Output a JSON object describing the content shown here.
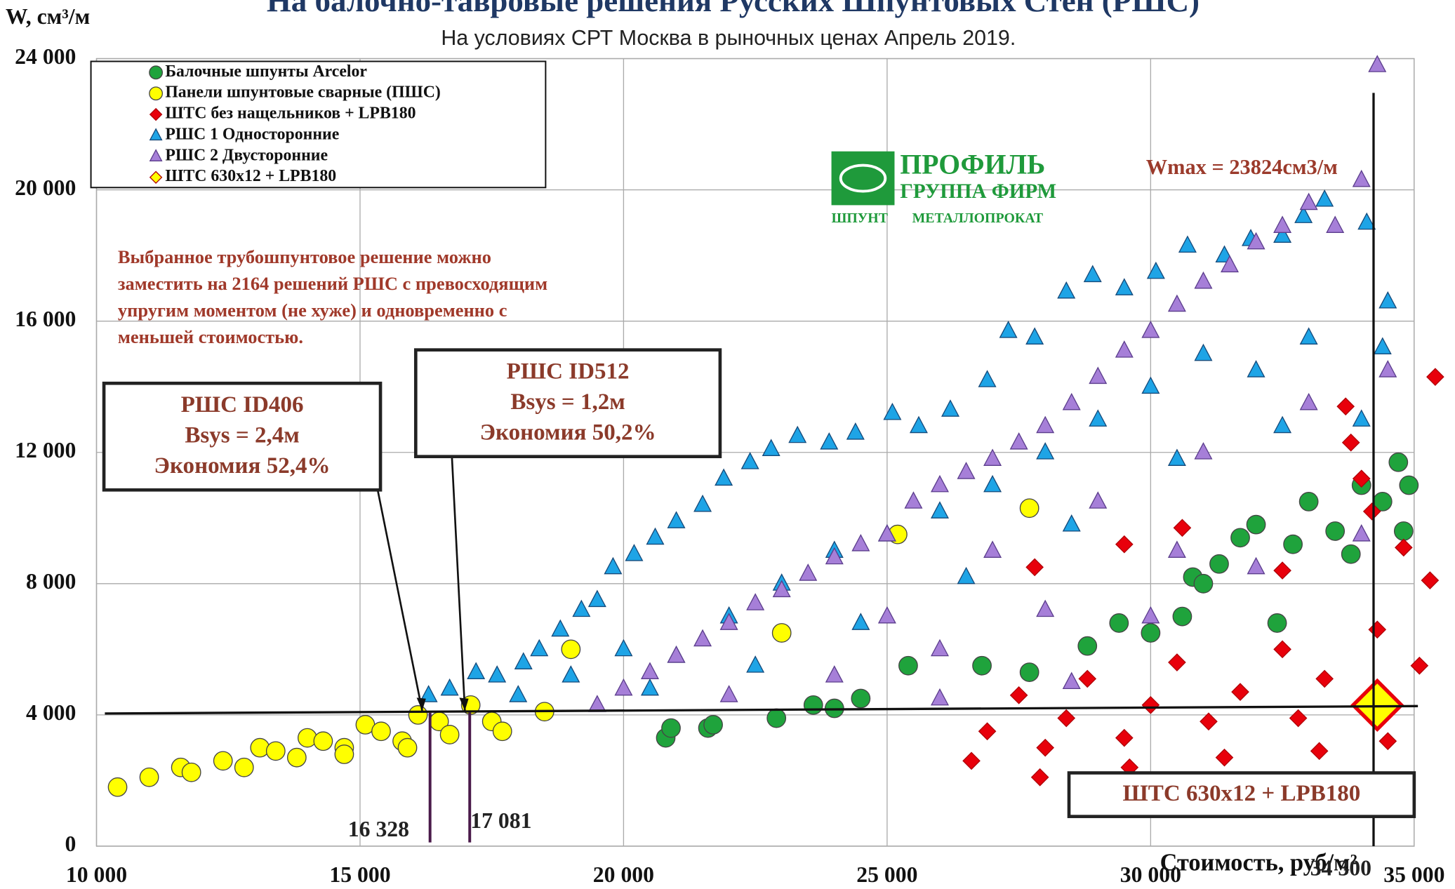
{
  "chart_data": {
    "type": "scatter",
    "title": "На балочно-тавровые решения Русских Шпунтовых Стен (РШС)",
    "subtitle": "На условиях СРТ Москва в рыночных ценах Апрель 2019.",
    "y_label": "W, см³/м",
    "x_label": "Стоимость, руб/м²",
    "xlim": [
      10000,
      35000
    ],
    "xticks": [
      {
        "value": 10000,
        "label": "10 000"
      },
      {
        "value": 15000,
        "label": "15 000"
      },
      {
        "value": 20000,
        "label": "20 000"
      },
      {
        "value": 25000,
        "label": "25 000"
      },
      {
        "value": 30000,
        "label": "30 000"
      },
      {
        "value": 35000,
        "label": "35 000"
      }
    ],
    "ylim": [
      0,
      24000
    ],
    "yticks": [
      0,
      {
        "value": 4000,
        "label": "4 000"
      },
      {
        "value": 8000,
        "label": "8 000"
      },
      {
        "value": 12000,
        "label": "12 000"
      },
      {
        "value": 16000,
        "label": "16 000"
      },
      {
        "value": 20000,
        "label": "20 000"
      },
      {
        "value": 24000,
        "label": "24 000"
      }
    ],
    "grid": true,
    "legend": "upper left",
    "series": [
      {
        "name": "Балочные шпунты Arcelor",
        "color": "#1fa33c",
        "marker": "circle",
        "x": [
          20800,
          20900,
          21600,
          21700,
          22900,
          23600,
          24000,
          24500,
          25400,
          26800,
          27700,
          28800,
          29400,
          30000,
          30600,
          30800,
          31300,
          31700,
          32000,
          32400,
          32700,
          33000,
          33500,
          34000,
          34400,
          34700,
          34900,
          34800,
          33800,
          31000
        ],
        "values": [
          3300,
          3600,
          3600,
          3700,
          3900,
          4300,
          4200,
          4500,
          5500,
          5500,
          5300,
          6100,
          6800,
          6500,
          7000,
          8200,
          8600,
          9400,
          9800,
          6800,
          9200,
          10500,
          9600,
          11000,
          10500,
          11700,
          11000,
          9600,
          8900,
          8000
        ]
      },
      {
        "name": "Панели шпунтовые сварные (ПШС)",
        "color": "#ffff00",
        "marker": "circle",
        "x": [
          10400,
          11000,
          11600,
          11800,
          12400,
          12800,
          13100,
          13400,
          13800,
          14000,
          14300,
          14700,
          14700,
          15100,
          15400,
          15800,
          15900,
          16100,
          16500,
          16700,
          17100,
          17500,
          17700,
          18500,
          19000,
          23000,
          25200,
          27700
        ],
        "values": [
          1800,
          2100,
          2400,
          2250,
          2600,
          2400,
          3000,
          2900,
          2700,
          3300,
          3200,
          3000,
          2800,
          3700,
          3500,
          3200,
          3000,
          4000,
          3800,
          3400,
          4300,
          3800,
          3500,
          4100,
          6000,
          6500,
          9500,
          10300
        ]
      },
      {
        "name": "ШТС без нащельников + LPB180",
        "color": "#e8000b",
        "marker": "diamond",
        "x": [
          26600,
          26900,
          27500,
          27900,
          28000,
          28400,
          28800,
          29500,
          29600,
          30000,
          30500,
          31100,
          31400,
          31700,
          32500,
          32800,
          33200,
          33300,
          33700,
          33800,
          34000,
          34200,
          34300,
          34500,
          34800,
          35100,
          35300,
          35400,
          32500,
          30600,
          29500,
          27800
        ],
        "values": [
          2600,
          3500,
          4600,
          2100,
          3000,
          3900,
          5100,
          3300,
          2400,
          4300,
          5600,
          3800,
          2700,
          4700,
          6000,
          3900,
          2900,
          5100,
          13400,
          12300,
          11200,
          10200,
          6600,
          3200,
          9100,
          5500,
          8100,
          14300,
          8400,
          9700,
          9200,
          8500
        ]
      },
      {
        "name": "РШС 1 Односторонние",
        "color": "#1ea4e6",
        "marker": "triangle",
        "x": [
          16300,
          16700,
          17200,
          17600,
          18100,
          18400,
          18800,
          19200,
          19500,
          19800,
          20200,
          20600,
          21000,
          21500,
          21900,
          22400,
          22800,
          23300,
          23900,
          24400,
          25100,
          25600,
          26200,
          26900,
          27300,
          27800,
          28400,
          28900,
          29500,
          30100,
          30700,
          31400,
          31900,
          32500,
          32900,
          33300,
          34100,
          34500,
          34400,
          18000,
          19000,
          20000,
          21000,
          22000,
          23000,
          24000,
          25000,
          26000,
          27000,
          28000,
          29000,
          30000,
          31000,
          32000,
          33000,
          20500,
          22500,
          24500,
          26500,
          28500,
          30500,
          32500,
          34000
        ],
        "values": [
          4600,
          4800,
          5300,
          5200,
          5600,
          6000,
          6600,
          7200,
          7500,
          8500,
          8900,
          9400,
          9900,
          10400,
          11200,
          11700,
          12100,
          12500,
          12300,
          12600,
          13200,
          12800,
          13300,
          14200,
          15700,
          15500,
          16900,
          17400,
          17000,
          17500,
          18300,
          18000,
          18500,
          18600,
          19200,
          19700,
          19000,
          16600,
          15200,
          4600,
          5200,
          6000,
          5800,
          7000,
          8000,
          9000,
          9500,
          10200,
          11000,
          12000,
          13000,
          14000,
          15000,
          14500,
          15500,
          4800,
          5500,
          6800,
          8200,
          9800,
          11800,
          12800,
          13000
        ]
      },
      {
        "name": "РШС 2 Двусторонние",
        "color": "#a67fd8",
        "marker": "triangle",
        "x": [
          19500,
          20000,
          20500,
          21000,
          21500,
          22000,
          22500,
          23000,
          23500,
          24000,
          24500,
          25000,
          25500,
          26000,
          26500,
          27000,
          27500,
          28000,
          28500,
          29000,
          29500,
          30000,
          30500,
          31000,
          31500,
          32000,
          32500,
          33000,
          33500,
          34000,
          34300,
          22000,
          24000,
          26000,
          28000,
          30000,
          32000,
          34000,
          25000,
          27000,
          29000,
          31000,
          33000,
          34500,
          26000,
          28500,
          30500
        ],
        "values": [
          4300,
          4800,
          5300,
          5800,
          6300,
          6800,
          7400,
          7800,
          8300,
          8800,
          9200,
          9500,
          10500,
          11000,
          11400,
          11800,
          12300,
          12800,
          13500,
          14300,
          15100,
          15700,
          16500,
          17200,
          17700,
          18400,
          18900,
          19600,
          18900,
          20300,
          23800,
          4600,
          5200,
          6000,
          7200,
          7000,
          8500,
          9500,
          7000,
          9000,
          10500,
          12000,
          13500,
          14500,
          4500,
          5000,
          9000
        ]
      },
      {
        "name": "ШТС 630x12 + LPB180",
        "color": "#ffff00",
        "marker": "diamond-big",
        "x": [
          34300
        ],
        "values": [
          4300
        ]
      }
    ],
    "annotation_text": [
      "Выбранное трубошпунтовое решение можно",
      "заместить на 2164 решений РШС с превосходящим",
      "упругим моментом (не хуже) и одновременно с",
      "меньшей стоимостью."
    ],
    "box_id406": [
      "РШС ID406",
      "Bsys = 2,4м",
      "Экономия 52,4%"
    ],
    "box_id512": [
      "РШС ID512",
      "Bsys = 1,2м",
      "Экономия 50,2%"
    ],
    "box_shts": "ШТС 630x12 +  LPB180",
    "wmax_label": "Wmax = 23824см3/м",
    "vlines": [
      {
        "value": 16328,
        "label": "16 328"
      },
      {
        "value": 17081,
        "label": "17 081"
      },
      {
        "value": 34300,
        "label": "34 300"
      }
    ],
    "logo": {
      "name": "ПРОФИЛЬ",
      "group": "ГРУППА ФИРМ",
      "tagline1": "ШПУНТ",
      "tagline2": "МЕТАЛЛОПРОКАТ"
    }
  }
}
